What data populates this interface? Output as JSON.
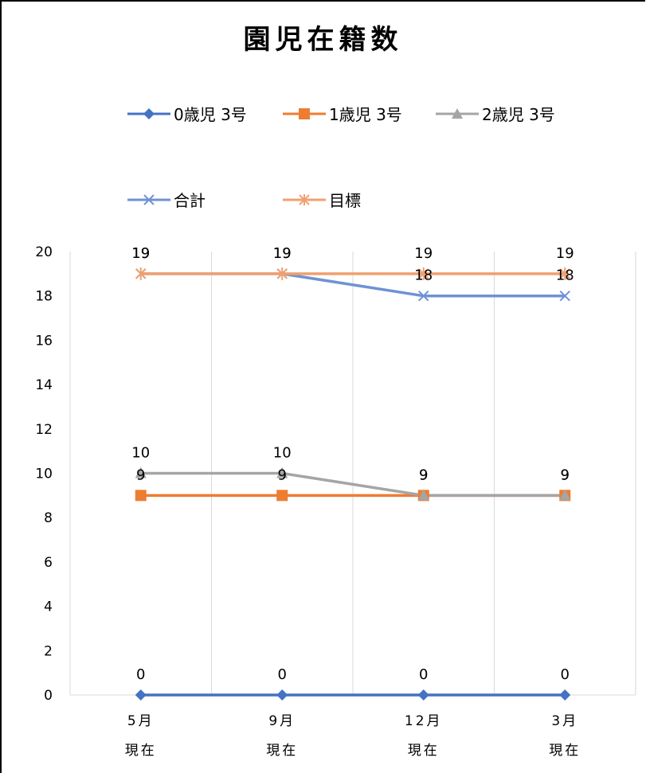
{
  "chart_data": {
    "type": "line",
    "title": "園児在籍数",
    "categories": [
      {
        "line1": "5月",
        "line2": "現在"
      },
      {
        "line1": "9月",
        "line2": "現在"
      },
      {
        "line1": "12月",
        "line2": "現在"
      },
      {
        "line1": "3月",
        "line2": "現在"
      }
    ],
    "series": [
      {
        "name": "0歳児 3号",
        "values": [
          0,
          0,
          0,
          0
        ],
        "color": "#4472C4",
        "marker": "diamond"
      },
      {
        "name": "1歳児 3号",
        "values": [
          9,
          9,
          9,
          9
        ],
        "color": "#ED7D31",
        "marker": "square"
      },
      {
        "name": "2歳児 3号",
        "values": [
          10,
          10,
          9,
          9
        ],
        "color": "#A5A5A5",
        "marker": "triangle"
      },
      {
        "name": "合計",
        "values": [
          19,
          19,
          18,
          18
        ],
        "color": "#6F92D4",
        "marker": "x"
      },
      {
        "name": "目標",
        "values": [
          19,
          19,
          19,
          19
        ],
        "color": "#F0A070",
        "marker": "star"
      }
    ],
    "ylim": [
      0,
      20
    ],
    "yticks": [
      0,
      2,
      4,
      6,
      8,
      10,
      12,
      14,
      16,
      18,
      20
    ],
    "grid": "vertical",
    "legend_position": "top",
    "data_labels": true
  }
}
